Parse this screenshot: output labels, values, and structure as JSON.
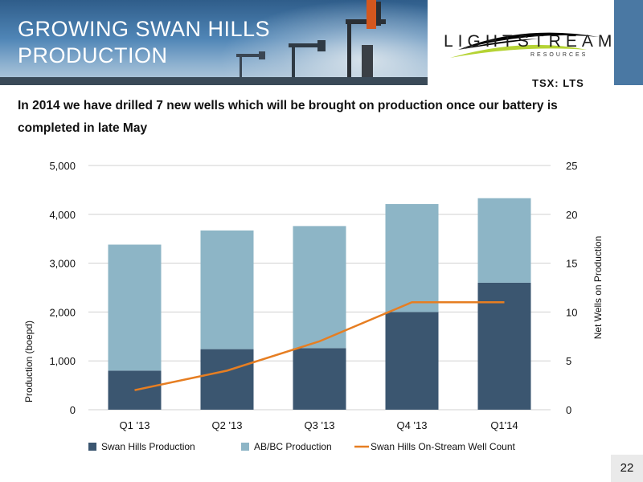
{
  "header": {
    "title_line1": "GROWING SWAN HILLS",
    "title_line2": "PRODUCTION"
  },
  "logo": {
    "name": "LIGHTSTREAM",
    "subtitle": "RESOURCES",
    "ticker": "TSX: LTS"
  },
  "subtitle": "In 2014 we have drilled 7 new wells which will be brought on production once our battery is completed in late May",
  "colors": {
    "swan_hills": "#3b5670",
    "abbc": "#8db5c6",
    "well_count_line": "#e67e22",
    "gridline": "#d0d0d0"
  },
  "chart_data": {
    "type": "bar",
    "stacked": true,
    "categories": [
      "Q1 '13",
      "Q2 '13",
      "Q3 '13",
      "Q4 '13",
      "Q1'14"
    ],
    "series": [
      {
        "name": "Swan Hills Production",
        "values": [
          800,
          1240,
          1260,
          2000,
          2600
        ]
      },
      {
        "name": "AB/BC Production",
        "values": [
          2580,
          2430,
          2500,
          2210,
          1730
        ]
      }
    ],
    "line_series": [
      {
        "name": "Swan Hills On-Stream Well Count",
        "axis": "right",
        "values": [
          2,
          4,
          7,
          11,
          11
        ]
      }
    ],
    "ylabel": "Production (boepd)",
    "ylabel_right": "Net Wells on Production",
    "ylim": [
      0,
      5000
    ],
    "ylim_right": [
      0,
      25
    ],
    "yticks": [
      "0",
      "1,000",
      "2,000",
      "3,000",
      "4,000",
      "5,000"
    ],
    "yticks_right": [
      "0",
      "5",
      "10",
      "15",
      "20",
      "25"
    ],
    "grid": true,
    "legend_position": "bottom"
  },
  "footer": {
    "page_number": "22"
  }
}
